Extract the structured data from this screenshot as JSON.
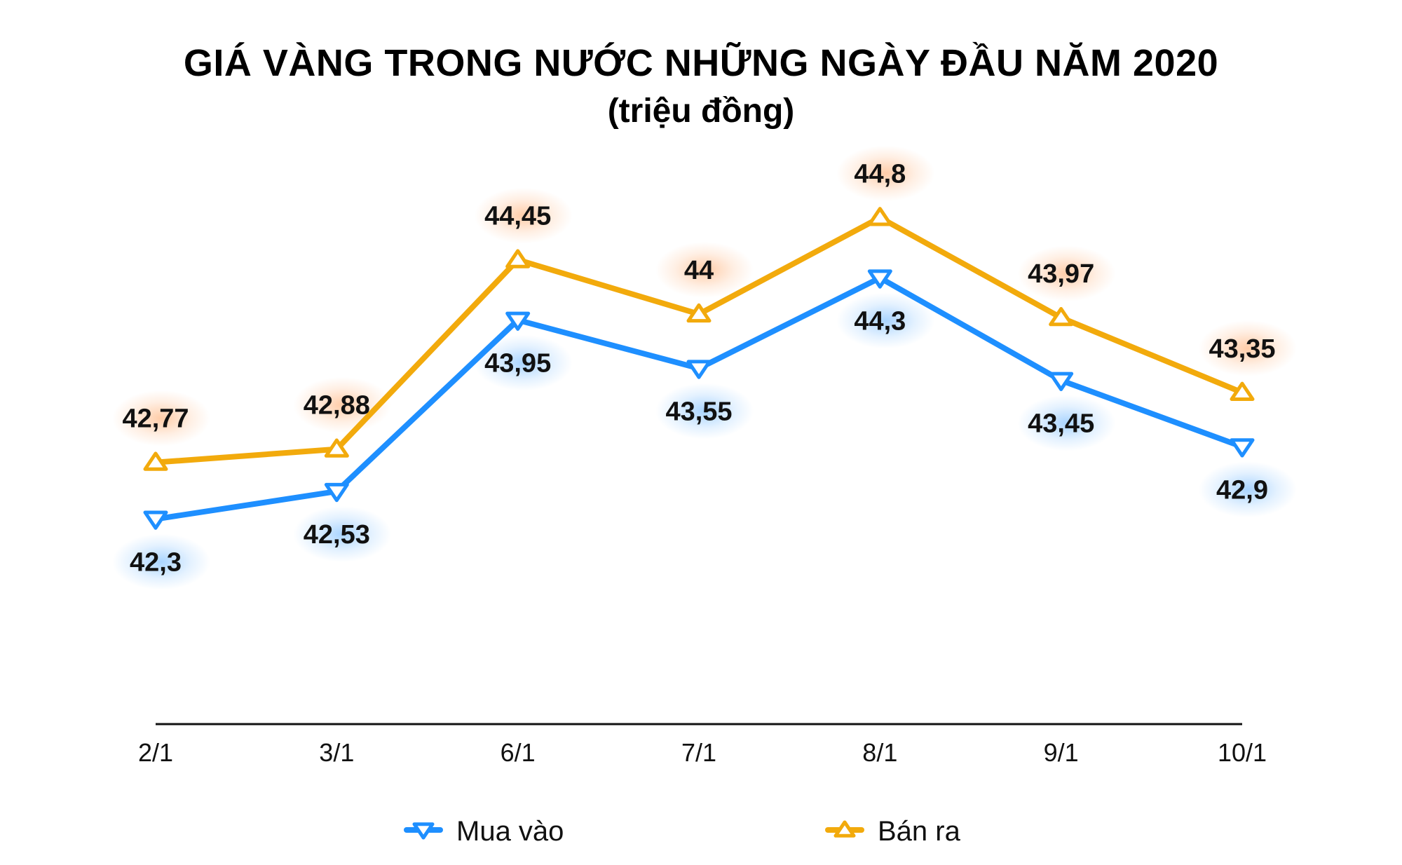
{
  "chart_data": {
    "type": "line",
    "title": "GIÁ VÀNG TRONG NƯỚC NHỮNG NGÀY ĐẦU NĂM 2020",
    "subtitle": "(triệu đồng)",
    "categories": [
      "2/1",
      "3/1",
      "6/1",
      "7/1",
      "8/1",
      "9/1",
      "10/1"
    ],
    "series": [
      {
        "name": "Mua vào",
        "color": "#1E8FFF",
        "marker": "triangle-down",
        "values": [
          42.3,
          42.53,
          43.95,
          43.55,
          44.3,
          43.45,
          42.9
        ],
        "labels": [
          "42,3",
          "42,53",
          "43,95",
          "43,55",
          "44,3",
          "43,45",
          "42,9"
        ],
        "label_position": "below"
      },
      {
        "name": "Bán ra",
        "color": "#F2AA0C",
        "marker": "triangle-up",
        "values": [
          42.77,
          42.88,
          44.45,
          44.0,
          44.8,
          43.97,
          43.35
        ],
        "labels": [
          "42,77",
          "42,88",
          "44,45",
          "44",
          "44,8",
          "43,97",
          "43,35"
        ],
        "label_position": "above"
      }
    ],
    "xlabel": "",
    "ylabel": "",
    "ylim": [
      40.6,
      45.5
    ],
    "y_axis_visible": false,
    "grid": false,
    "legend_position": "bottom"
  }
}
